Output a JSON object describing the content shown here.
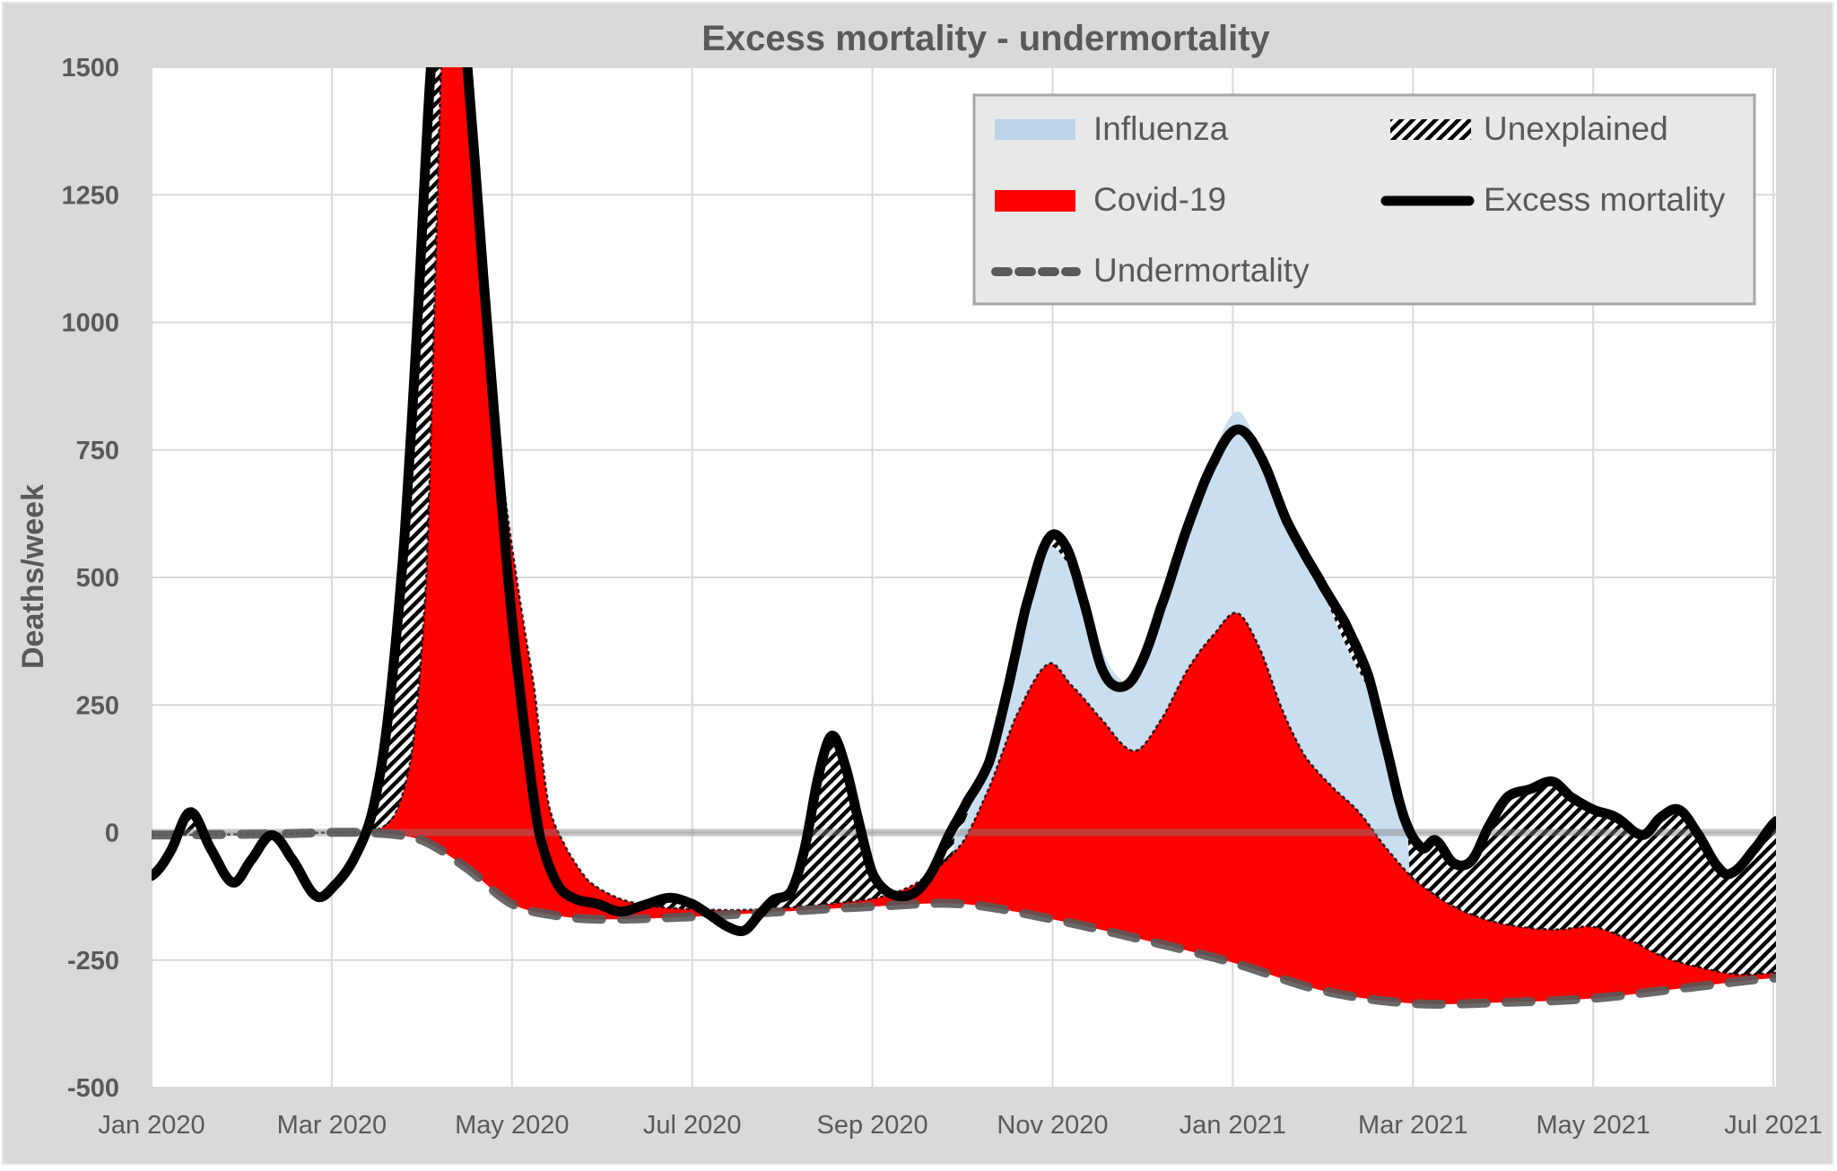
{
  "chart_data": {
    "type": "area",
    "title": "Excess mortality - undermortality",
    "xlabel": "",
    "ylabel": "Deaths/week",
    "ylim": [
      -500,
      1500
    ],
    "xlim_months_since_jan_2020": [
      0,
      18.05
    ],
    "y_ticks": [
      1500,
      1250,
      1000,
      750,
      500,
      250,
      0,
      -250,
      -500
    ],
    "y_tick_labels": [
      "1500",
      "1250",
      "1000",
      "750",
      "500",
      "250",
      "0",
      "-250",
      "-500"
    ],
    "x_ticks": [
      {
        "month": 0,
        "label": "Jan 2020"
      },
      {
        "month": 2,
        "label": "Mar 2020"
      },
      {
        "month": 4,
        "label": "May 2020"
      },
      {
        "month": 6,
        "label": "Jul 2020"
      },
      {
        "month": 8,
        "label": "Sep 2020"
      },
      {
        "month": 10,
        "label": "Nov 2020"
      },
      {
        "month": 12,
        "label": "Jan 2021"
      },
      {
        "month": 14,
        "label": "Mar 2021"
      },
      {
        "month": 16,
        "label": "May 2021"
      },
      {
        "month": 18,
        "label": "Jul 2021"
      }
    ],
    "grid": true,
    "legend_position": "top-right",
    "legend": [
      {
        "key": "influenza",
        "label": "Influenza",
        "style": "fill"
      },
      {
        "key": "unexplained",
        "label": "Unexplained",
        "style": "hatch"
      },
      {
        "key": "covid",
        "label": "Covid-19",
        "style": "fill"
      },
      {
        "key": "excess",
        "label": "Excess mortality",
        "style": "solid-line"
      },
      {
        "key": "under",
        "label": "Undermortality",
        "style": "dashed-line"
      }
    ],
    "colors": {
      "influenza": "#c9dff0",
      "covid": "#ff0000",
      "excess": "#000000",
      "under": "#595959",
      "grid": "#d9d9d9",
      "frame": "#d9d9d9",
      "legend_bg": "#e8e8e8",
      "legend_border": "#a6a6a6",
      "text": "#595959"
    },
    "x_unit": "months since Jan 2020",
    "series": [
      {
        "name": "Undermortality",
        "key": "under",
        "points": [
          [
            0,
            -5
          ],
          [
            1.3,
            -3
          ],
          [
            2.4,
            0
          ],
          [
            3.0,
            -15
          ],
          [
            3.5,
            -70
          ],
          [
            4.0,
            -140
          ],
          [
            4.5,
            -163
          ],
          [
            5.0,
            -170
          ],
          [
            6.0,
            -165
          ],
          [
            7.0,
            -155
          ],
          [
            8.0,
            -145
          ],
          [
            9.0,
            -140
          ],
          [
            10.0,
            -170
          ],
          [
            11.0,
            -210
          ],
          [
            12.0,
            -255
          ],
          [
            13.0,
            -310
          ],
          [
            14.0,
            -335
          ],
          [
            15.0,
            -333
          ],
          [
            16.0,
            -325
          ],
          [
            17.0,
            -305
          ],
          [
            18.05,
            -285
          ]
        ]
      },
      {
        "name": "Covid-19",
        "key": "covid",
        "points": [
          [
            0,
            -5
          ],
          [
            2.4,
            0
          ],
          [
            2.7,
            35
          ],
          [
            2.9,
            170
          ],
          [
            3.05,
            500
          ],
          [
            3.15,
            1100
          ],
          [
            3.25,
            1700
          ],
          [
            3.35,
            1850
          ],
          [
            3.5,
            1550
          ],
          [
            3.7,
            1100
          ],
          [
            3.85,
            760
          ],
          [
            4.05,
            500
          ],
          [
            4.25,
            280
          ],
          [
            4.4,
            60
          ],
          [
            4.6,
            -30
          ],
          [
            4.85,
            -95
          ],
          [
            5.2,
            -130
          ],
          [
            5.6,
            -145
          ],
          [
            6.0,
            -150
          ],
          [
            6.5,
            -152
          ],
          [
            7.0,
            -148
          ],
          [
            7.5,
            -140
          ],
          [
            8.0,
            -130
          ],
          [
            8.3,
            -115
          ],
          [
            8.6,
            -85
          ],
          [
            9.0,
            -20
          ],
          [
            9.3,
            90
          ],
          [
            9.6,
            230
          ],
          [
            9.95,
            330
          ],
          [
            10.2,
            290
          ],
          [
            10.5,
            230
          ],
          [
            10.9,
            160
          ],
          [
            11.2,
            220
          ],
          [
            11.5,
            320
          ],
          [
            11.8,
            390
          ],
          [
            12.05,
            430
          ],
          [
            12.3,
            360
          ],
          [
            12.55,
            240
          ],
          [
            12.8,
            150
          ],
          [
            13.1,
            90
          ],
          [
            13.4,
            40
          ],
          [
            13.7,
            -30
          ],
          [
            14.0,
            -90
          ],
          [
            14.4,
            -140
          ],
          [
            14.8,
            -170
          ],
          [
            15.2,
            -185
          ],
          [
            15.6,
            -190
          ],
          [
            16.0,
            -185
          ],
          [
            16.4,
            -210
          ],
          [
            16.8,
            -245
          ],
          [
            17.2,
            -265
          ],
          [
            17.6,
            -278
          ],
          [
            18.05,
            -275
          ]
        ]
      },
      {
        "name": "Influenza",
        "key": "influenza",
        "points": [
          [
            8.9,
            -10
          ],
          [
            9.1,
            60
          ],
          [
            9.4,
            250
          ],
          [
            9.7,
            460
          ],
          [
            9.95,
            560
          ],
          [
            10.25,
            500
          ],
          [
            10.5,
            380
          ],
          [
            10.7,
            310
          ],
          [
            10.95,
            300
          ],
          [
            11.3,
            480
          ],
          [
            11.7,
            700
          ],
          [
            12.05,
            825
          ],
          [
            12.35,
            720
          ],
          [
            12.7,
            580
          ],
          [
            13.0,
            470
          ],
          [
            13.3,
            350
          ],
          [
            13.55,
            260
          ],
          [
            13.8,
            100
          ],
          [
            13.95,
            0
          ]
        ]
      },
      {
        "name": "Excess mortality",
        "key": "excess",
        "points": [
          [
            0,
            -85
          ],
          [
            0.2,
            -40
          ],
          [
            0.43,
            40
          ],
          [
            0.65,
            -30
          ],
          [
            0.9,
            -98
          ],
          [
            1.1,
            -55
          ],
          [
            1.33,
            -5
          ],
          [
            1.55,
            -50
          ],
          [
            1.83,
            -125
          ],
          [
            2.05,
            -100
          ],
          [
            2.25,
            -50
          ],
          [
            2.45,
            40
          ],
          [
            2.62,
            220
          ],
          [
            2.8,
            560
          ],
          [
            2.95,
            1000
          ],
          [
            3.1,
            1500
          ],
          [
            3.25,
            1750
          ],
          [
            3.4,
            1700
          ],
          [
            3.55,
            1400
          ],
          [
            3.7,
            1050
          ],
          [
            3.85,
            720
          ],
          [
            4.0,
            420
          ],
          [
            4.15,
            190
          ],
          [
            4.3,
            0
          ],
          [
            4.5,
            -100
          ],
          [
            4.7,
            -130
          ],
          [
            4.95,
            -140
          ],
          [
            5.2,
            -155
          ],
          [
            5.45,
            -143
          ],
          [
            5.75,
            -128
          ],
          [
            6.0,
            -140
          ],
          [
            6.2,
            -162
          ],
          [
            6.4,
            -185
          ],
          [
            6.58,
            -192
          ],
          [
            6.75,
            -160
          ],
          [
            6.9,
            -132
          ],
          [
            7.1,
            -115
          ],
          [
            7.25,
            -30
          ],
          [
            7.4,
            110
          ],
          [
            7.55,
            190
          ],
          [
            7.7,
            130
          ],
          [
            7.85,
            20
          ],
          [
            8.0,
            -80
          ],
          [
            8.2,
            -120
          ],
          [
            8.45,
            -120
          ],
          [
            8.65,
            -80
          ],
          [
            8.85,
            -5
          ],
          [
            9.05,
            60
          ],
          [
            9.3,
            140
          ],
          [
            9.5,
            280
          ],
          [
            9.7,
            440
          ],
          [
            9.95,
            575
          ],
          [
            10.15,
            560
          ],
          [
            10.35,
            450
          ],
          [
            10.55,
            320
          ],
          [
            10.75,
            285
          ],
          [
            10.95,
            320
          ],
          [
            11.2,
            440
          ],
          [
            11.5,
            600
          ],
          [
            11.8,
            730
          ],
          [
            12.05,
            790
          ],
          [
            12.3,
            740
          ],
          [
            12.6,
            610
          ],
          [
            12.95,
            500
          ],
          [
            13.25,
            410
          ],
          [
            13.5,
            310
          ],
          [
            13.7,
            170
          ],
          [
            13.9,
            30
          ],
          [
            14.1,
            -30
          ],
          [
            14.25,
            -15
          ],
          [
            14.45,
            -60
          ],
          [
            14.65,
            -55
          ],
          [
            14.85,
            15
          ],
          [
            15.05,
            70
          ],
          [
            15.3,
            85
          ],
          [
            15.55,
            100
          ],
          [
            15.75,
            70
          ],
          [
            16.0,
            45
          ],
          [
            16.25,
            30
          ],
          [
            16.55,
            -5
          ],
          [
            16.75,
            30
          ],
          [
            16.95,
            45
          ],
          [
            17.15,
            0
          ],
          [
            17.4,
            -70
          ],
          [
            17.55,
            -78
          ],
          [
            17.8,
            -30
          ],
          [
            18.05,
            25
          ]
        ]
      }
    ]
  }
}
